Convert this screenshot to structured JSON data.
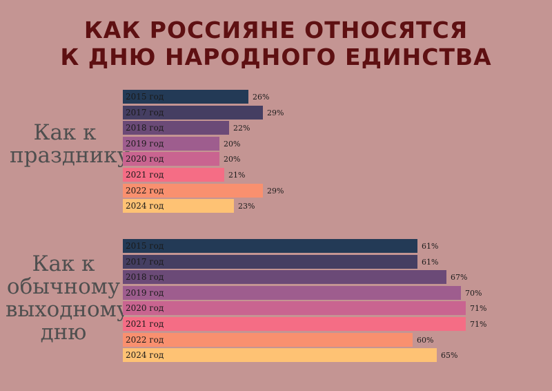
{
  "title": {
    "line1": "КАК РОССИЯНЕ ОТНОСЯТСЯ",
    "line2": "К ДНЮ НАРОДНОГО ЕДИНСТВА"
  },
  "colors": {
    "background": "#c49593",
    "title": "#5e1012",
    "2015 год": "#233a56",
    "2017 год": "#453e62",
    "2018 год": "#6b4a77",
    "2019 год": "#9e5d8e",
    "2020 год": "#c96490",
    "2021 год": "#f56d85",
    "2022 год": "#f9906f",
    "2024 год": "#fec274"
  },
  "chart_data": [
    {
      "type": "bar",
      "orientation": "horizontal",
      "group_label": "Как к празднику",
      "categories": [
        "2015 год",
        "2017 год",
        "2018 год",
        "2019 год",
        "2020 год",
        "2021 год",
        "2022 год",
        "2024 год"
      ],
      "values": [
        26,
        29,
        22,
        20,
        20,
        21,
        29,
        23
      ],
      "value_labels": [
        "26%",
        "29%",
        "22%",
        "20%",
        "20%",
        "21%",
        "29%",
        "23%"
      ],
      "unit": "%"
    },
    {
      "type": "bar",
      "orientation": "horizontal",
      "group_label": "Как к обычному выходному дню",
      "categories": [
        "2015 год",
        "2017 год",
        "2018 год",
        "2019 год",
        "2020 год",
        "2021 год",
        "2022 год",
        "2024 год"
      ],
      "values": [
        61,
        61,
        67,
        70,
        71,
        71,
        60,
        65
      ],
      "value_labels": [
        "61%",
        "61%",
        "67%",
        "70%",
        "71%",
        "71%",
        "60%",
        "65%"
      ],
      "unit": "%"
    }
  ]
}
